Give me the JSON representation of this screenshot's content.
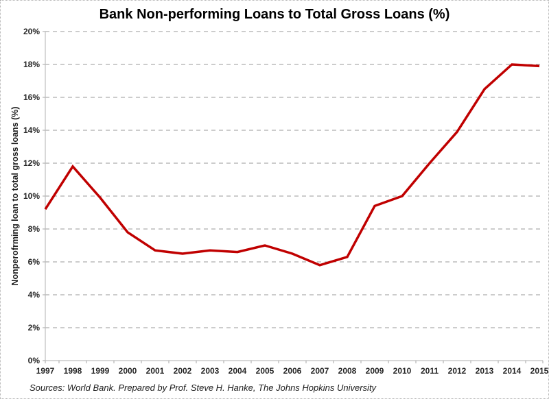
{
  "chart_data": {
    "type": "line",
    "title": "Bank Non-performing Loans to Total Gross Loans (%)",
    "ylabel": "Nonperofrming loan to total gross loans (%)",
    "xlabel": "",
    "categories": [
      "1997",
      "1998",
      "1999",
      "2000",
      "2001",
      "2002",
      "2003",
      "2004",
      "2005",
      "2006",
      "2007",
      "2008",
      "2009",
      "2010",
      "2011",
      "2012",
      "2013",
      "2014",
      "2015"
    ],
    "series": [
      {
        "name": "Bank non-performing loans to total gross loans (%)",
        "color": "#c00000",
        "values": [
          9.2,
          11.8,
          9.9,
          7.8,
          6.7,
          6.5,
          6.7,
          6.6,
          7.0,
          6.5,
          5.8,
          6.3,
          9.4,
          10.0,
          12.0,
          13.9,
          16.5,
          18.0,
          17.9
        ]
      }
    ],
    "ylim": [
      0,
      20
    ],
    "ytick_step": 2,
    "ytick_suffix": "%",
    "grid": "horizontal-dashed",
    "legend_position": "none"
  },
  "footer": {
    "source": "Sources: World Bank. Prepared by Prof. Steve H. Hanke, The Johns Hopkins University"
  },
  "colors": {
    "line": "#c00000",
    "gridline": "#999999",
    "axis": "#bfbfbf",
    "tick": "#a6a6a6",
    "text": "#262626",
    "frame_border": "#b3b3b3"
  }
}
